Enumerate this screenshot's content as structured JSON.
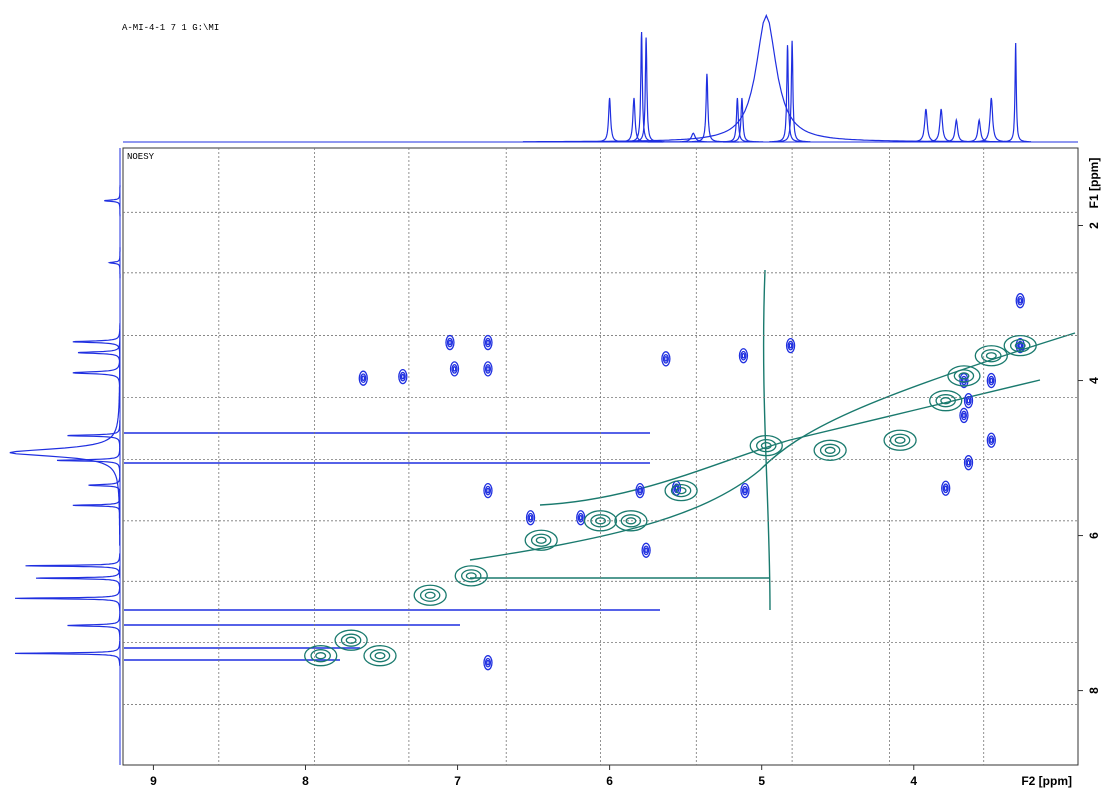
{
  "chart_data": {
    "type": "nmr2d",
    "header": "A-MI-4-1  7  1  G:\\MI",
    "experiment": "NOESY",
    "x_label": "F2 [ppm]",
    "y_label": "F1 [ppm]",
    "xlim": [
      9.2,
      2.92
    ],
    "ylim": [
      1.0,
      8.96
    ],
    "xticks": [
      9,
      8,
      7,
      6,
      5,
      4
    ],
    "yticks": [
      2,
      4,
      6,
      8
    ],
    "xgrid": [
      8.57,
      7.94,
      7.32,
      6.68,
      6.06,
      5.43,
      4.8,
      4.16,
      3.54
    ],
    "ygrid": [
      1.83,
      2.61,
      3.42,
      4.22,
      5.02,
      5.81,
      6.59,
      7.38,
      8.18
    ],
    "projection_color": "#1f2fe0",
    "top_projection": [
      {
        "ppm": 6.0,
        "height": 40,
        "width": 0.008
      },
      {
        "ppm": 5.84,
        "height": 40,
        "width": 0.008
      },
      {
        "ppm": 5.79,
        "height": 100,
        "width": 0.006
      },
      {
        "ppm": 5.76,
        "height": 95,
        "width": 0.006
      },
      {
        "ppm": 5.45,
        "height": 8,
        "width": 0.015
      },
      {
        "ppm": 5.36,
        "height": 62,
        "width": 0.007
      },
      {
        "ppm": 5.16,
        "height": 40,
        "width": 0.007
      },
      {
        "ppm": 5.13,
        "height": 40,
        "width": 0.007
      },
      {
        "ppm": 4.97,
        "height": 115,
        "width": 0.08
      },
      {
        "ppm": 4.83,
        "height": 88,
        "width": 0.006
      },
      {
        "ppm": 4.8,
        "height": 92,
        "width": 0.006
      },
      {
        "ppm": 3.92,
        "height": 30,
        "width": 0.01
      },
      {
        "ppm": 3.82,
        "height": 30,
        "width": 0.01
      },
      {
        "ppm": 3.72,
        "height": 20,
        "width": 0.01
      },
      {
        "ppm": 3.57,
        "height": 20,
        "width": 0.01
      },
      {
        "ppm": 3.49,
        "height": 40,
        "width": 0.01
      },
      {
        "ppm": 3.33,
        "height": 90,
        "width": 0.005
      }
    ],
    "side_projection": [
      {
        "ppm": 1.68,
        "height": 15,
        "width": 0.01
      },
      {
        "ppm": 2.48,
        "height": 10,
        "width": 0.01
      },
      {
        "ppm": 3.5,
        "height": 45,
        "width": 0.012
      },
      {
        "ppm": 3.64,
        "height": 40,
        "width": 0.012
      },
      {
        "ppm": 3.9,
        "height": 45,
        "width": 0.015
      },
      {
        "ppm": 4.71,
        "height": 50,
        "width": 0.01
      },
      {
        "ppm": 4.93,
        "height": 105,
        "width": 0.06
      },
      {
        "ppm": 5.03,
        "height": 60,
        "width": 0.01
      },
      {
        "ppm": 5.35,
        "height": 30,
        "width": 0.01
      },
      {
        "ppm": 5.61,
        "height": 45,
        "width": 0.008
      },
      {
        "ppm": 6.39,
        "height": 90,
        "width": 0.008
      },
      {
        "ppm": 6.55,
        "height": 80,
        "width": 0.008
      },
      {
        "ppm": 6.81,
        "height": 100,
        "width": 0.008
      },
      {
        "ppm": 7.16,
        "height": 50,
        "width": 0.01
      },
      {
        "ppm": 7.52,
        "height": 100,
        "width": 0.008
      }
    ],
    "series": [
      {
        "name": "positive",
        "color": "#1f2fe0",
        "x": [
          7.05,
          6.8,
          7.02,
          6.8,
          6.8,
          5.63,
          5.12,
          7.36,
          7.62,
          5.8,
          5.56,
          5.11,
          3.67,
          3.49,
          3.64,
          3.67,
          3.49,
          3.64,
          3.79,
          6.19,
          6.52,
          5.76,
          6.8,
          4.81,
          3.3,
          3.3
        ],
        "values": [
          3.51,
          3.51,
          3.85,
          3.85,
          5.42,
          3.72,
          3.68,
          3.95,
          3.97,
          5.42,
          5.39,
          5.42,
          4.0,
          4.0,
          4.26,
          4.45,
          4.77,
          5.06,
          5.39,
          5.77,
          5.77,
          6.19,
          7.64,
          3.55,
          3.55,
          2.97
        ]
      },
      {
        "name": "negative",
        "color": "#1a7a6e",
        "x": [
          3.3,
          3.49,
          3.67,
          3.79,
          4.09,
          4.55,
          4.97,
          5.53,
          5.86,
          6.06,
          6.45,
          6.91,
          7.18,
          7.51,
          7.7,
          7.9
        ],
        "values": [
          3.55,
          3.68,
          3.94,
          4.26,
          4.77,
          4.9,
          4.84,
          5.42,
          5.81,
          5.81,
          6.06,
          6.52,
          6.77,
          7.55,
          7.35,
          7.55
        ]
      }
    ]
  }
}
